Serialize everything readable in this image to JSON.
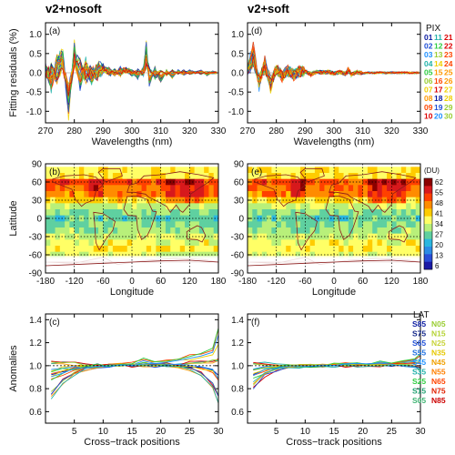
{
  "column_titles": [
    "v2+nosoft",
    "v2+soft"
  ],
  "chart_data": [
    {
      "id": "a",
      "panel_label": "(a)",
      "type": "line",
      "x": [
        270,
        272,
        274,
        276,
        278,
        280,
        282,
        284,
        286,
        288,
        290,
        292,
        294,
        296,
        298,
        300,
        302,
        304,
        305,
        306,
        308,
        310,
        312,
        314,
        316,
        318,
        320,
        322,
        324,
        326,
        328,
        330
      ],
      "series": [
        {
          "values": [
            0.15,
            -0.35,
            0.3,
            0.45,
            -0.9,
            0.6,
            -0.3,
            0.25,
            -0.2,
            0.15,
            0.1,
            0.1,
            -0.05,
            0.1,
            0.08,
            0.05,
            -0.1,
            0.1,
            0.65,
            -0.25,
            0.1,
            -0.2,
            0.05,
            -0.1,
            0.05,
            -0.05,
            0.05,
            0.0,
            0.05,
            -0.05,
            0.02,
            0.0
          ]
        },
        {
          "values": [
            0.05,
            -0.2,
            0.2,
            0.3,
            -0.6,
            0.4,
            -0.2,
            0.15,
            -0.1,
            0.1,
            0.05,
            0.05,
            -0.02,
            0.05,
            0.05,
            0.02,
            -0.05,
            0.05,
            0.45,
            -0.15,
            0.05,
            -0.1,
            0.02,
            -0.05,
            0.02,
            -0.02,
            0.02,
            0.0,
            0.02,
            -0.02,
            0.01,
            0.0
          ]
        },
        {
          "values": [
            -0.05,
            0.1,
            -0.15,
            0.25,
            -0.7,
            0.3,
            0.2,
            -0.15,
            0.1,
            -0.1,
            0.15,
            -0.05,
            0.05,
            -0.05,
            0.1,
            -0.05,
            0.05,
            -0.05,
            0.3,
            0.1,
            -0.1,
            0.05,
            -0.05,
            0.05,
            -0.02,
            0.05,
            -0.02,
            0.02,
            -0.02,
            0.02,
            -0.01,
            0.0
          ]
        }
      ],
      "xlabel": "Wavelengths (nm)",
      "ylabel": "Fitting residuals (%)",
      "xlim": [
        270,
        330
      ],
      "ylim": [
        -1.3,
        1.3
      ],
      "xticks": [
        "270",
        "280",
        "290",
        "300",
        "310",
        "320",
        "330"
      ],
      "yticks": [
        "-1.0",
        "-0.5",
        "0.0",
        "0.5",
        "1.0"
      ]
    },
    {
      "id": "d",
      "panel_label": "(d)",
      "type": "line",
      "x": [
        270,
        272,
        274,
        276,
        278,
        280,
        282,
        284,
        286,
        288,
        290,
        292,
        294,
        296,
        298,
        300,
        302,
        304,
        305,
        306,
        308,
        310,
        312,
        314,
        316,
        318,
        320,
        322,
        324,
        326,
        328,
        330
      ],
      "series": [
        {
          "values": [
            0.1,
            0.6,
            -0.3,
            0.3,
            -0.4,
            0.15,
            -0.1,
            0.1,
            -0.08,
            0.05,
            0.05,
            -0.05,
            0.03,
            0.02,
            0.03,
            -0.02,
            0.02,
            -0.03,
            0.1,
            -0.05,
            0.02,
            -0.02,
            0.01,
            -0.01,
            0.01,
            -0.01,
            0.01,
            0.0,
            0.01,
            0.0,
            0.0,
            0.0
          ]
        },
        {
          "values": [
            0.05,
            0.35,
            -0.2,
            0.15,
            -0.25,
            0.1,
            -0.05,
            0.05,
            -0.05,
            0.03,
            0.02,
            -0.02,
            0.02,
            0.01,
            0.02,
            -0.01,
            0.01,
            -0.02,
            0.05,
            -0.03,
            0.01,
            -0.01,
            0.0,
            0.0,
            0.01,
            0.0,
            0.0,
            0.0,
            0.0,
            0.0,
            0.0,
            0.0
          ]
        }
      ],
      "xlabel": "Wavelengths (nm)",
      "ylabel": "",
      "xlim": [
        270,
        330
      ],
      "ylim": [
        -1.3,
        1.3
      ],
      "xticks": [
        "270",
        "280",
        "290",
        "300",
        "310",
        "320",
        "330"
      ],
      "yticks": [
        "-1.0",
        "-0.5",
        "0.0",
        "0.5",
        "1.0"
      ]
    },
    {
      "id": "b",
      "panel_label": "(b)",
      "type": "heatmap",
      "xlabel": "Longitude",
      "ylabel": "Latitude",
      "xlim": [
        -180,
        180
      ],
      "ylim": [
        -90,
        90
      ],
      "xticks": [
        "-180",
        "-120",
        "-60",
        "0",
        "60",
        "120",
        "180"
      ],
      "yticks": [
        "-90",
        "-60",
        "-30",
        "0",
        "30",
        "60",
        "90"
      ],
      "zonal_mean_du": [
        {
          "lat": 80,
          "du": 38
        },
        {
          "lat": 70,
          "du": 38
        },
        {
          "lat": 60,
          "du": 50
        },
        {
          "lat": 50,
          "du": 48
        },
        {
          "lat": 40,
          "du": 46
        },
        {
          "lat": 30,
          "du": 40
        },
        {
          "lat": 20,
          "du": 33
        },
        {
          "lat": 10,
          "du": 29
        },
        {
          "lat": 0,
          "du": 27
        },
        {
          "lat": -10,
          "du": 29
        },
        {
          "lat": -20,
          "du": 31
        },
        {
          "lat": -30,
          "du": 33
        },
        {
          "lat": -40,
          "du": 36
        },
        {
          "lat": -50,
          "du": 38
        },
        {
          "lat": -60,
          "du": 34
        }
      ]
    },
    {
      "id": "e",
      "panel_label": "(e)",
      "type": "heatmap",
      "xlabel": "Longitude",
      "ylabel": "",
      "xlim": [
        -180,
        180
      ],
      "ylim": [
        -90,
        90
      ],
      "xticks": [
        "-180",
        "-120",
        "-60",
        "0",
        "60",
        "120",
        "180"
      ],
      "yticks": [
        "-90",
        "-60",
        "-30",
        "0",
        "30",
        "60",
        "90"
      ],
      "zonal_mean_du": [
        {
          "lat": 80,
          "du": 38
        },
        {
          "lat": 70,
          "du": 38
        },
        {
          "lat": 60,
          "du": 50
        },
        {
          "lat": 50,
          "du": 48
        },
        {
          "lat": 40,
          "du": 46
        },
        {
          "lat": 30,
          "du": 40
        },
        {
          "lat": 20,
          "du": 33
        },
        {
          "lat": 10,
          "du": 29
        },
        {
          "lat": 0,
          "du": 27
        },
        {
          "lat": -10,
          "du": 29
        },
        {
          "lat": -20,
          "du": 31
        },
        {
          "lat": -30,
          "du": 33
        },
        {
          "lat": -40,
          "du": 36
        },
        {
          "lat": -50,
          "du": 38
        },
        {
          "lat": -60,
          "du": 34
        }
      ]
    },
    {
      "id": "c",
      "panel_label": "(c)",
      "type": "line",
      "x": [
        1,
        3,
        5,
        7,
        9,
        11,
        13,
        15,
        17,
        19,
        21,
        23,
        25,
        27,
        29,
        30
      ],
      "series": [
        {
          "values": [
            0.72,
            0.85,
            0.93,
            0.97,
            0.99,
            1.0,
            1.01,
            1.0,
            1.01,
            1.0,
            1.0,
            0.99,
            0.97,
            0.93,
            0.82,
            0.68
          ]
        },
        {
          "values": [
            0.88,
            0.93,
            0.97,
            0.99,
            1.0,
            1.0,
            1.01,
            1.01,
            1.02,
            1.01,
            1.01,
            1.0,
            0.99,
            0.98,
            0.95,
            0.88
          ]
        },
        {
          "values": [
            1.03,
            1.03,
            1.02,
            1.01,
            1.0,
            1.0,
            1.0,
            1.0,
            1.0,
            1.0,
            1.01,
            1.01,
            1.02,
            1.03,
            1.04,
            1.05
          ]
        },
        {
          "values": [
            0.95,
            0.97,
            0.98,
            0.99,
            1.0,
            1.0,
            1.01,
            1.02,
            1.05,
            1.03,
            1.04,
            1.06,
            1.08,
            1.1,
            1.13,
            1.28
          ]
        }
      ],
      "xlabel": "Cross−track positions",
      "ylabel": "Anomalies",
      "xlim": [
        0,
        30
      ],
      "ylim": [
        0.5,
        1.45
      ],
      "xticks": [
        "5",
        "10",
        "15",
        "20",
        "25",
        "30"
      ],
      "yticks": [
        "0.6",
        "0.8",
        "1.0",
        "1.2",
        "1.4"
      ]
    },
    {
      "id": "f",
      "panel_label": "(f)",
      "type": "line",
      "x": [
        1,
        3,
        5,
        7,
        9,
        11,
        13,
        15,
        17,
        19,
        21,
        23,
        25,
        27,
        29,
        30
      ],
      "series": [
        {
          "values": [
            0.82,
            0.92,
            0.96,
            0.98,
            0.99,
            1.0,
            1.0,
            1.0,
            1.0,
            1.0,
            1.0,
            1.0,
            1.0,
            1.0,
            0.99,
            0.96
          ]
        },
        {
          "values": [
            0.9,
            0.95,
            0.98,
            0.99,
            1.0,
            1.0,
            1.0,
            1.01,
            1.01,
            1.01,
            1.01,
            1.01,
            1.01,
            1.0,
            0.99,
            0.98
          ]
        },
        {
          "values": [
            1.02,
            1.02,
            1.01,
            1.0,
            1.0,
            1.0,
            1.0,
            1.0,
            1.0,
            1.0,
            1.0,
            1.01,
            1.01,
            1.02,
            1.03,
            1.04
          ]
        },
        {
          "values": [
            0.97,
            0.98,
            0.99,
            1.0,
            1.0,
            1.0,
            1.0,
            1.01,
            1.02,
            1.02,
            1.02,
            1.03,
            1.03,
            1.04,
            1.05,
            1.1
          ]
        }
      ],
      "xlabel": "Cross−track positions",
      "ylabel": "",
      "xlim": [
        0,
        30
      ],
      "ylim": [
        0.5,
        1.45
      ],
      "xticks": [
        "5",
        "10",
        "15",
        "20",
        "25",
        "30"
      ],
      "yticks": [
        "0.6",
        "0.8",
        "1.0",
        "1.2",
        "1.4"
      ]
    }
  ],
  "pix_legend": {
    "title": "PIX",
    "rows": [
      {
        "a": "01",
        "b": "11",
        "c": "21"
      },
      {
        "a": "02",
        "b": "12",
        "c": "22"
      },
      {
        "a": "03",
        "b": "13",
        "c": "23"
      },
      {
        "a": "04",
        "b": "14",
        "c": "24"
      },
      {
        "a": "05",
        "b": "15",
        "c": "25"
      },
      {
        "a": "06",
        "b": "16",
        "c": "26"
      },
      {
        "a": "07",
        "b": "17",
        "c": "27"
      },
      {
        "a": "08",
        "b": "18",
        "c": "28"
      },
      {
        "a": "09",
        "b": "19",
        "c": "29"
      },
      {
        "a": "10",
        "b": "20",
        "c": "30"
      }
    ]
  },
  "lat_legend": {
    "title": "LAT",
    "rows": [
      {
        "s": "S85",
        "n": "N05"
      },
      {
        "s": "S75",
        "n": "N15"
      },
      {
        "s": "S65",
        "n": "N25"
      },
      {
        "s": "S55",
        "n": "N35"
      },
      {
        "s": "S45",
        "n": "N45"
      },
      {
        "s": "S35",
        "n": "N55"
      },
      {
        "s": "S25",
        "n": "N65"
      },
      {
        "s": "S15",
        "n": "N75"
      },
      {
        "s": "S05",
        "n": "N85"
      }
    ]
  },
  "colorbar": {
    "unit": "(DU)",
    "ticks": [
      "62",
      "55",
      "48",
      "41",
      "34",
      "27",
      "20",
      "13",
      "6"
    ],
    "colors": [
      "#8b0000",
      "#d7191c",
      "#ff4000",
      "#ff8c00",
      "#ffcc00",
      "#ffff66",
      "#b8f07a",
      "#5fd0a0",
      "#2ab7e0",
      "#2c8be6",
      "#2a4ed8",
      "#1a1aa6"
    ]
  },
  "palette": {
    "spectrum": [
      "#0a1aa0",
      "#1f4fd6",
      "#1e90ff",
      "#20b2aa",
      "#2ecc40",
      "#9acd32",
      "#f0d000",
      "#ff9800",
      "#ff4500",
      "#dd0000"
    ]
  }
}
